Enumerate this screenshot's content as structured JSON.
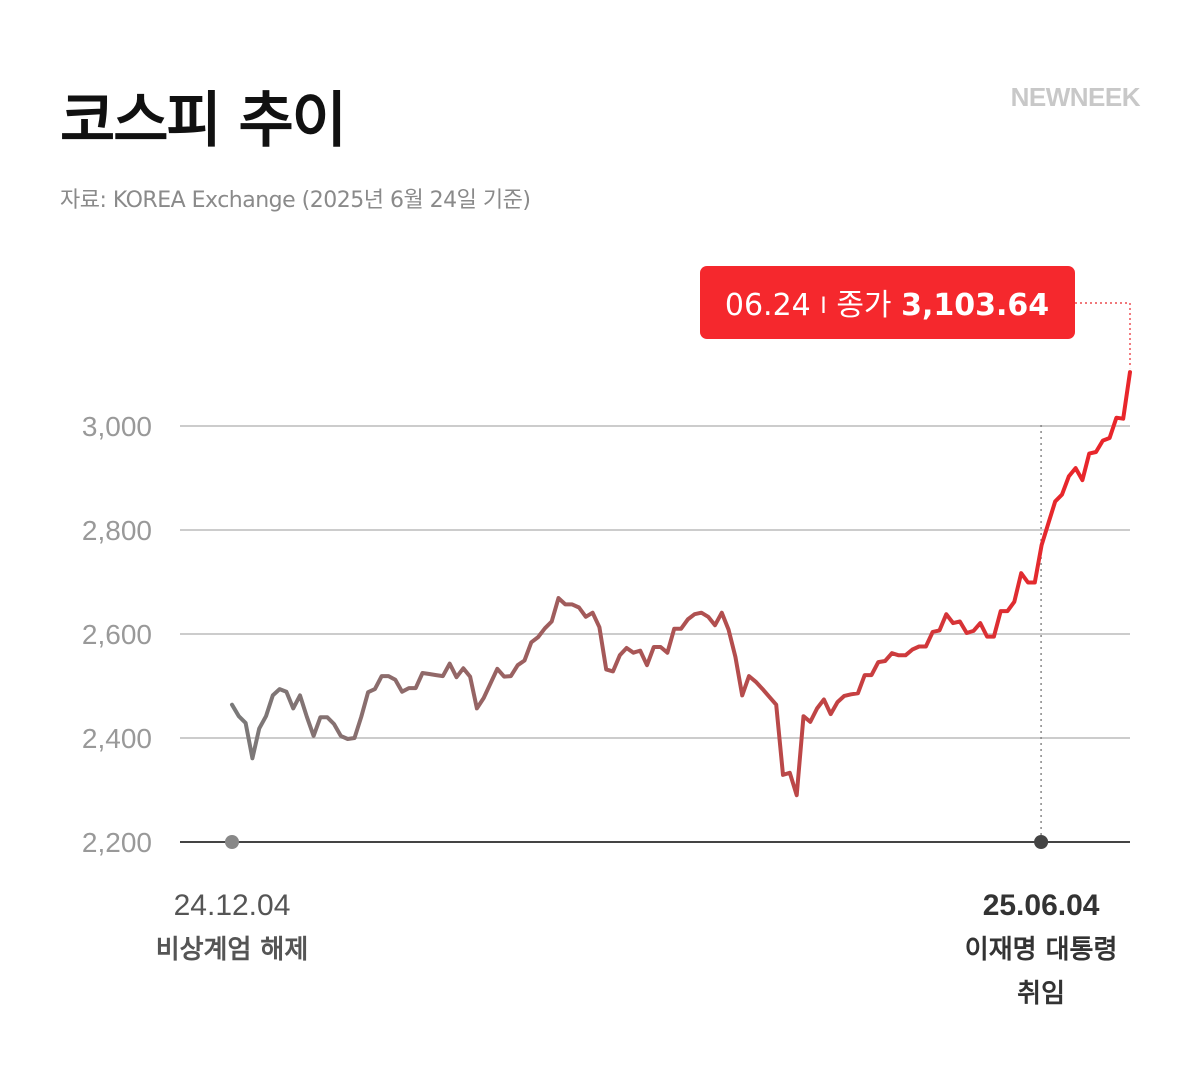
{
  "header": {
    "title": "코스피 추이",
    "brand": "NEWNEEK",
    "source": "자료: KOREA Exchange (2025년 6월 24일 기준)"
  },
  "callout": {
    "date": "06.24",
    "separator": "I",
    "label": "종가",
    "value": "3,103.64"
  },
  "events": [
    {
      "date": "24.12.04",
      "lines": [
        "비상계엄 해제"
      ],
      "color": "#555555"
    },
    {
      "date": "25.06.04",
      "lines": [
        "이재명 대통령",
        "취임"
      ],
      "color": "#333333"
    }
  ],
  "colors": {
    "start": "#7a7a7a",
    "mid": "#b84a4a",
    "end": "#e8262b",
    "callout_bg": "#f5282d",
    "grid": "#cccccc",
    "axis": "#444444"
  },
  "chart_data": {
    "type": "line",
    "title": "코스피 추이",
    "xlabel": "",
    "ylabel": "",
    "ylim": [
      2200,
      3100
    ],
    "yticks": [
      2200,
      2400,
      2600,
      2800,
      3000
    ],
    "ytick_labels": [
      "2,200",
      "2,400",
      "2,600",
      "2,800",
      "3,000"
    ],
    "x_range": [
      "2024-12-04",
      "2025-06-24"
    ],
    "grid": true,
    "series": [
      {
        "values": [
          2464,
          2442,
          2429,
          2361,
          2418,
          2442,
          2482,
          2494,
          2489,
          2457,
          2482,
          2441,
          2404,
          2440,
          2440,
          2427,
          2404,
          2398,
          2400,
          2441,
          2488,
          2494,
          2519,
          2519,
          2512,
          2489,
          2496,
          2496,
          2525,
          2523,
          2521,
          2519,
          2543,
          2517,
          2534,
          2518,
          2457,
          2477,
          2505,
          2533,
          2518,
          2519,
          2540,
          2549,
          2584,
          2594,
          2611,
          2624,
          2669,
          2657,
          2657,
          2651,
          2633,
          2641,
          2613,
          2532,
          2528,
          2559,
          2573,
          2564,
          2568,
          2540,
          2575,
          2575,
          2564,
          2610,
          2610,
          2628,
          2638,
          2641,
          2633,
          2617,
          2641,
          2608,
          2556,
          2482,
          2519,
          2508,
          2494,
          2479,
          2464,
          2329,
          2333,
          2290,
          2442,
          2431,
          2457,
          2474,
          2446,
          2469,
          2481,
          2484,
          2486,
          2521,
          2521,
          2546,
          2548,
          2563,
          2559,
          2559,
          2570,
          2576,
          2576,
          2604,
          2607,
          2638,
          2621,
          2624,
          2602,
          2606,
          2621,
          2595,
          2595,
          2644,
          2644,
          2662,
          2717,
          2699,
          2699,
          2771,
          2813,
          2855,
          2868,
          2903,
          2919,
          2896,
          2947,
          2950,
          2972,
          2977,
          3016,
          3014,
          3103.64
        ]
      }
    ],
    "annotations": [
      {
        "x": "2024-12-04",
        "text": "비상계엄 해제"
      },
      {
        "x": "2025-06-04",
        "text": "이재명 대통령 취임"
      },
      {
        "x": "2025-06-24",
        "text": "06.24 I 종가 3,103.64"
      }
    ]
  }
}
